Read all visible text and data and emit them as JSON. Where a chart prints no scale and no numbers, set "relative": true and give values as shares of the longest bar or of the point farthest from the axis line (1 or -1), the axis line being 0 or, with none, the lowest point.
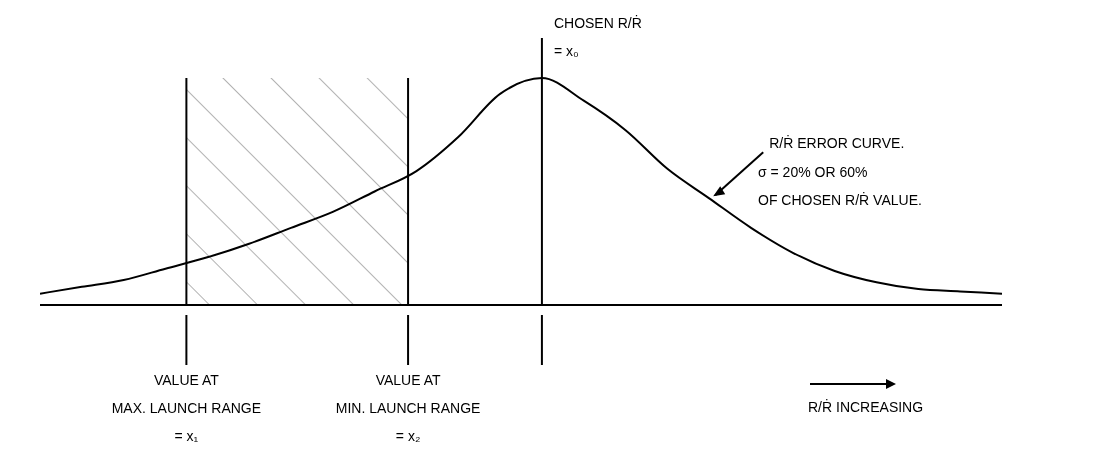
{
  "chart_data": {
    "type": "line",
    "relative": true,
    "marker": "none",
    "categories": [
      null,
      null,
      null,
      null,
      null,
      null,
      null,
      null,
      null,
      null,
      null,
      null,
      null,
      null,
      null,
      null,
      null,
      null,
      null,
      null,
      null,
      null,
      null,
      null
    ],
    "series": [
      {
        "name": "R/Ṙ ERROR CURVE.",
        "color": "#000000",
        "values": [
          0.05,
          0.08,
          0.11,
          0.16,
          0.21,
          0.27,
          0.34,
          0.41,
          0.5,
          0.59,
          0.74,
          0.93,
          1,
          0.9,
          0.77,
          0.6,
          0.47,
          0.34,
          0.23,
          0.15,
          0.1,
          0.07,
          0.06,
          0.05
        ]
      }
    ],
    "annotations": [
      "CHOSEN R/Ṙ\n= x₀",
      "VALUE AT\nMAX. LAUNCH RANGE\n= x₁",
      "VALUE AT\nMIN. LAUNCH RANGE\n= x₂",
      "σ = 20% OR 60%\nOF CHOSEN R/Ṙ VALUE.",
      "R/Ṙ INCREASING"
    ]
  }
}
